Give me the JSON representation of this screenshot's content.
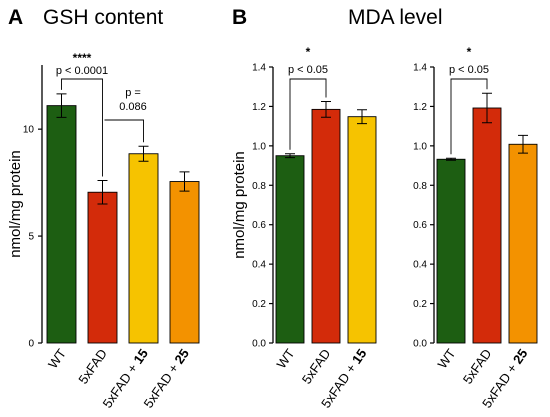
{
  "colors": {
    "WT": "#1d5e12",
    "5xFAD": "#d32b0a",
    "5xFAD + 15": "#f6c300",
    "5xFAD + 25": "#f39200"
  },
  "panels": {
    "A": {
      "letter": "A",
      "title": "GSH content"
    },
    "B": {
      "letter": "B",
      "title": "MDA level"
    }
  },
  "chart_data": [
    {
      "type": "bar",
      "panel": "A",
      "title": "GSH content",
      "ylabel": "nmol/mg protein",
      "ylim": [
        0,
        13
      ],
      "yticks": [
        0,
        5,
        10
      ],
      "categories": [
        "WT",
        "5xFAD",
        "5xFAD + 15",
        "5xFAD + 25"
      ],
      "values": [
        11.1,
        7.05,
        8.85,
        7.55
      ],
      "errors": [
        0.55,
        0.55,
        0.35,
        0.45
      ],
      "annotations": [
        {
          "between": [
            "WT",
            "5xFAD"
          ],
          "text": "p < 0.0001",
          "stars": "****"
        },
        {
          "between": [
            "5xFAD",
            "5xFAD + 15"
          ],
          "text": "p = 0.086"
        }
      ]
    },
    {
      "type": "bar",
      "panel": "B",
      "ylabel": "nmol/mg protein",
      "ylim": [
        0,
        1.4
      ],
      "yticks": [
        0.0,
        0.2,
        0.4,
        0.6,
        0.8,
        1.0,
        1.2,
        1.4
      ],
      "categories": [
        "WT",
        "5xFAD",
        "5xFAD + 15"
      ],
      "values": [
        0.95,
        1.185,
        1.148
      ],
      "errors": [
        0.01,
        0.04,
        0.035
      ],
      "annotations": [
        {
          "between": [
            "WT",
            "5xFAD"
          ],
          "text": "p < 0.05",
          "stars": "*"
        }
      ]
    },
    {
      "type": "bar",
      "panel": "B",
      "ylim": [
        0,
        1.4
      ],
      "yticks": [
        0.0,
        0.2,
        0.4,
        0.6,
        0.8,
        1.0,
        1.2,
        1.4
      ],
      "categories": [
        "WT",
        "5xFAD",
        "5xFAD + 25"
      ],
      "values": [
        0.932,
        1.192,
        1.008
      ],
      "errors": [
        0.005,
        0.075,
        0.045
      ],
      "annotations": [
        {
          "between": [
            "WT",
            "5xFAD"
          ],
          "text": "p < 0.05",
          "stars": "*"
        }
      ]
    }
  ]
}
